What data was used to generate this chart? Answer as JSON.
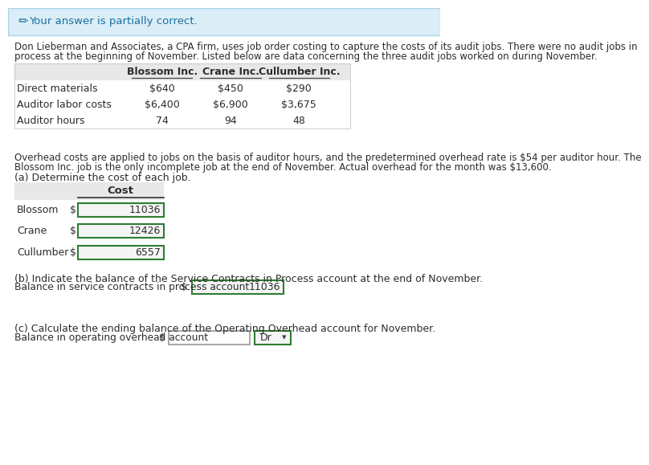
{
  "banner_text": "Your answer is partially correct.",
  "banner_bg": "#dbeef7",
  "banner_border": "#a8d4e8",
  "intro_line1": "Don Lieberman and Associates, a CPA firm, uses job order costing to capture the costs of its audit jobs. There were no audit jobs in",
  "intro_line2": "process at the beginning of November. Listed below are data concerning the three audit jobs worked on during November.",
  "table1_headers": [
    "Blossom Inc.",
    "Crane Inc.",
    "Cullumber Inc."
  ],
  "table1_rows": [
    [
      "Direct materials",
      "$640",
      "$450",
      "$290"
    ],
    [
      "Auditor labor costs",
      "$6,400",
      "$6,900",
      "$3,675"
    ],
    [
      "Auditor hours",
      "74",
      "94",
      "48"
    ]
  ],
  "overhead_line1": "Overhead costs are applied to jobs on the basis of auditor hours, and the predetermined overhead rate is $54 per auditor hour. The",
  "overhead_line2": "Blossom Inc. job is the only incomplete job at the end of November. Actual overhead for the month was $13,600.",
  "part_a_label": "(a) Determine the cost of each job.",
  "cost_header": "Cost",
  "cost_rows": [
    [
      "Blossom",
      "$",
      "11036"
    ],
    [
      "Crane",
      "$",
      "12426"
    ],
    [
      "Cullumber",
      "$",
      "6557"
    ]
  ],
  "part_b_label": "(b) Indicate the balance of the Service Contracts in Process account at the end of November.",
  "balance_label": "Balance in service contracts in process account",
  "balance_dollar": "$",
  "balance_value": "11036",
  "part_c_label": "(c) Calculate the ending balance of the Operating Overhead account for November.",
  "overhead_balance_label": "Balance in operating overhead account",
  "overhead_balance_dollar": "$",
  "overhead_balance_value": "",
  "dr_label": "Dr",
  "text_color_dark": "#2c2c2c",
  "text_color_teal": "#1a6fa0",
  "table_header_bg": "#e8e8e8",
  "input_border_color_green": "#2e7d32",
  "input_border_color_gray": "#aaaaaa",
  "input_bg_filled": "#f5f5f5",
  "input_bg_empty": "#ffffff"
}
